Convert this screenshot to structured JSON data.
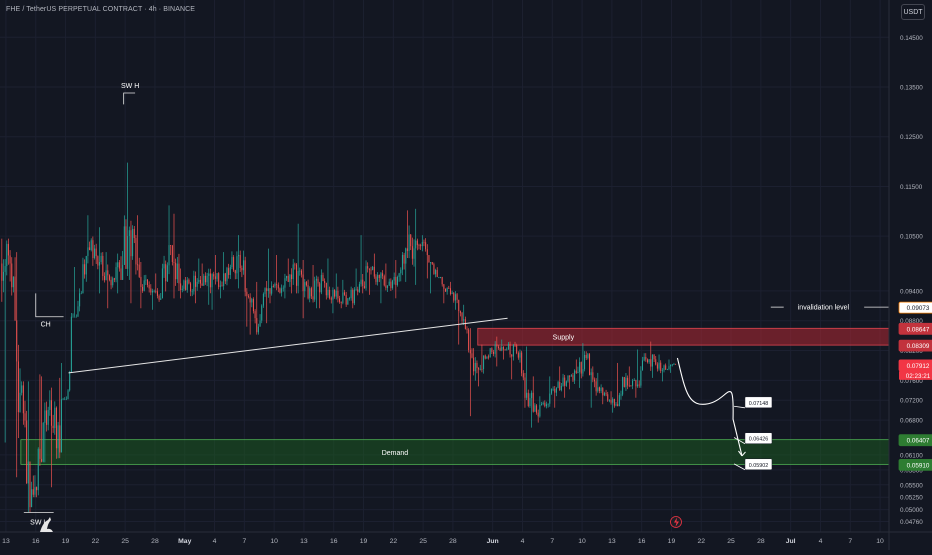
{
  "header": {
    "title": "FHE / TetherUS PERPETUAL CONTRACT · 4h · BINANCE",
    "currency_button": "USDT"
  },
  "chart_data": {
    "type": "candlestick",
    "title": "FHE / TetherUS PERPETUAL CONTRACT · 4h · BINANCE",
    "ylim": [
      0.0455,
      0.1525
    ],
    "y_ticks": [
      0.145,
      0.135,
      0.125,
      0.115,
      0.105,
      0.094,
      0.088,
      0.082,
      0.076,
      0.072,
      0.068,
      0.061,
      0.058,
      0.055,
      0.0525,
      0.05,
      0.0476
    ],
    "y_tick_labels": [
      "0.14500",
      "0.13500",
      "0.12500",
      "0.11500",
      "0.10500",
      "0.09400",
      "0.08800",
      "0.08200",
      "0.07600",
      "0.07200",
      "0.06800",
      "0.06100",
      "0.05800",
      "0.05500",
      "0.05250",
      "0.05000",
      "0.04760"
    ],
    "x_ticks": [
      {
        "label": "13",
        "i": 0
      },
      {
        "label": "16",
        "i": 3
      },
      {
        "label": "19",
        "i": 6
      },
      {
        "label": "22",
        "i": 9
      },
      {
        "label": "25",
        "i": 12
      },
      {
        "label": "28",
        "i": 15
      },
      {
        "label": "May",
        "i": 18
      },
      {
        "label": "4",
        "i": 21
      },
      {
        "label": "7",
        "i": 24
      },
      {
        "label": "10",
        "i": 27
      },
      {
        "label": "13",
        "i": 30
      },
      {
        "label": "16",
        "i": 33
      },
      {
        "label": "19",
        "i": 36
      },
      {
        "label": "22",
        "i": 39
      },
      {
        "label": "25",
        "i": 42
      },
      {
        "label": "28",
        "i": 45
      },
      {
        "label": "Jun",
        "i": 49
      },
      {
        "label": "4",
        "i": 52
      },
      {
        "label": "7",
        "i": 55
      },
      {
        "label": "10",
        "i": 58
      },
      {
        "label": "13",
        "i": 61
      },
      {
        "label": "16",
        "i": 64
      },
      {
        "label": "19",
        "i": 67
      },
      {
        "label": "22",
        "i": 70
      },
      {
        "label": "25",
        "i": 73
      },
      {
        "label": "28",
        "i": 76
      },
      {
        "label": "Jul",
        "i": 79
      },
      {
        "label": "4",
        "i": 82
      },
      {
        "label": "7",
        "i": 85
      },
      {
        "label": "10",
        "i": 88
      }
    ],
    "x_range": [
      -0.6,
      88.9
    ],
    "daily_close": [
      0.0995,
      0.0735,
      0.0505,
      0.0602,
      0.072,
      0.0615,
      0.0775,
      0.0935,
      0.1022,
      0.0998,
      0.0962,
      0.0985,
      0.1062,
      0.0968,
      0.0945,
      0.0922,
      0.1032,
      0.0955,
      0.0955,
      0.0962,
      0.0975,
      0.0948,
      0.0972,
      0.1012,
      0.0928,
      0.0868,
      0.0945,
      0.0945,
      0.0958,
      0.098,
      0.0925,
      0.0955,
      0.0942,
      0.0925,
      0.0925,
      0.0938,
      0.0985,
      0.0972,
      0.0951,
      0.0968,
      0.102,
      0.1032,
      0.1012,
      0.0968,
      0.0946,
      0.0922,
      0.0862,
      0.0785,
      0.0808,
      0.0828,
      0.0822,
      0.0815,
      0.0735,
      0.0695,
      0.0712,
      0.0745,
      0.0758,
      0.0775,
      0.0805,
      0.0738,
      0.0732,
      0.0712,
      0.0765,
      0.0748,
      0.0802,
      0.0792,
      0.0782,
      0.0792
    ],
    "daily_high": [
      0.1045,
      0.1018,
      0.0758,
      0.0772,
      0.0768,
      0.0765,
      0.0795,
      0.0988,
      0.1092,
      0.1068,
      0.1018,
      0.1015,
      0.1198,
      0.1092,
      0.0998,
      0.0975,
      0.1112,
      0.1095,
      0.0985,
      0.1005,
      0.0995,
      0.1012,
      0.1018,
      0.1052,
      0.1021,
      0.0958,
      0.1025,
      0.1012,
      0.1005,
      0.1075,
      0.1002,
      0.0992,
      0.1005,
      0.0975,
      0.0962,
      0.0985,
      0.1052,
      0.1015,
      0.0995,
      0.1002,
      0.1102,
      0.1105,
      0.1052,
      0.0998,
      0.0968,
      0.0958,
      0.0912,
      0.0865,
      0.0832,
      0.0848,
      0.0842,
      0.0838,
      0.0828,
      0.0768,
      0.0728,
      0.0768,
      0.0788,
      0.0802,
      0.0835,
      0.0815,
      0.0775,
      0.0738,
      0.0795,
      0.0788,
      0.0822,
      0.0838,
      0.0812,
      0.0802
    ],
    "daily_low": [
      0.0635,
      0.0565,
      0.0495,
      0.0525,
      0.0595,
      0.0545,
      0.0722,
      0.0888,
      0.0935,
      0.0935,
      0.0905,
      0.0935,
      0.0962,
      0.0915,
      0.0905,
      0.0902,
      0.0925,
      0.0925,
      0.0925,
      0.0915,
      0.0912,
      0.0902,
      0.0925,
      0.0945,
      0.0868,
      0.0852,
      0.0875,
      0.0915,
      0.0925,
      0.0935,
      0.0885,
      0.0905,
      0.0905,
      0.0895,
      0.0905,
      0.0905,
      0.0935,
      0.0932,
      0.0915,
      0.0925,
      0.0958,
      0.0952,
      0.0965,
      0.0935,
      0.0915,
      0.0902,
      0.0832,
      0.0688,
      0.0748,
      0.0788,
      0.0802,
      0.0762,
      0.0705,
      0.0665,
      0.0675,
      0.0705,
      0.0725,
      0.0742,
      0.0745,
      0.0705,
      0.0712,
      0.0695,
      0.0708,
      0.0725,
      0.0745,
      0.0765,
      0.0758,
      0.0775
    ],
    "current_price": 0.07912,
    "zones": [
      {
        "name": "Supply",
        "y_top": 0.08647,
        "y_bottom": 0.08309,
        "x_start": 47.5,
        "color": "#b22833"
      },
      {
        "name": "Demand",
        "y_top": 0.06407,
        "y_bottom": 0.0591,
        "x_start": 1.5,
        "color": "#1b5e20"
      }
    ],
    "annotations": [
      {
        "text": "SW H",
        "x": 4.8,
        "y": 0.1345
      },
      {
        "text": "CH",
        "x": 3.2,
        "y": 0.0875
      },
      {
        "text": "SW L",
        "x": 1.2,
        "y": 0.0493
      },
      {
        "text": "invalidation level",
        "x": 82.5,
        "y": 0.09073
      }
    ],
    "price_tags": [
      {
        "label": "0.09073",
        "value": 0.09073,
        "bg": "#ffffff",
        "fg": "#131722",
        "border": "#f57c00"
      },
      {
        "label": "0.08647",
        "value": 0.08647,
        "bg": "#c2333d",
        "fg": "#ffffff",
        "border": "#c2333d"
      },
      {
        "label": "0.08309",
        "value": 0.08309,
        "bg": "#c2333d",
        "fg": "#ffffff",
        "border": "#c2333d"
      },
      {
        "label": "0.07912",
        "value": 0.07912,
        "bg": "#f23645",
        "fg": "#ffffff",
        "border": "#f23645",
        "sub": "02:23:21"
      },
      {
        "label": "0.06407",
        "value": 0.06407,
        "bg": "#2e7d32",
        "fg": "#ffffff",
        "border": "#2e7d32"
      },
      {
        "label": "0.05910",
        "value": 0.0591,
        "bg": "#2e7d32",
        "fg": "#ffffff",
        "border": "#2e7d32"
      }
    ],
    "target_boxes": [
      {
        "label": "0.07148",
        "x": 74.4,
        "y": 0.07148,
        "arrow_x": 73.3,
        "arrow_y": 0.0708
      },
      {
        "label": "0.06426",
        "x": 74.4,
        "y": 0.06426,
        "arrow_x": 73.3,
        "arrow_y": 0.0645
      },
      {
        "label": "0.05902",
        "x": 74.4,
        "y": 0.05902,
        "arrow_x": 73.3,
        "arrow_y": 0.0592
      }
    ]
  }
}
